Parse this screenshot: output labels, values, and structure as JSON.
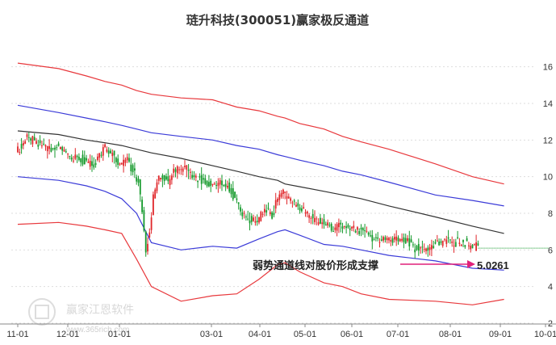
{
  "chart_data": {
    "type": "candlestick_with_channels",
    "title": "琏升科技(300051)赢家极反通道",
    "y_ticks": [
      "16",
      "14",
      "12",
      "10",
      "8",
      "6",
      "4",
      "2"
    ],
    "x_ticks": [
      "11-01",
      "12-01",
      "01-01",
      "03-01",
      "04-01",
      "05-01",
      "06-01",
      "07-01",
      "08-01",
      "09-01",
      "10-01"
    ],
    "ylim": [
      2,
      17
    ],
    "grid": "horizontal dashed",
    "annotation": {
      "text": "弱势通道线对股价形成支撑",
      "value": "5.0261"
    },
    "watermark": {
      "brand": "赢家江恩软件",
      "url": "www.365rich.com"
    },
    "colors": {
      "up": "#e0262a",
      "down": "#159a2c",
      "channel_outer": "#e8383c",
      "channel_inner": "#3b3bd8",
      "mid": "#333333",
      "arrow": "#e0217a"
    },
    "channel_x": [
      0,
      22,
      37,
      47,
      56,
      64,
      72,
      88,
      105,
      118,
      130,
      140,
      144,
      152,
      165,
      175,
      185,
      200,
      225,
      245,
      262
    ],
    "upper_outer": [
      16.2,
      15.9,
      15.5,
      15.2,
      15.0,
      14.7,
      14.5,
      14.3,
      14.2,
      13.8,
      13.6,
      13.3,
      13.2,
      12.9,
      12.6,
      12.2,
      11.9,
      11.5,
      10.7,
      10.0,
      9.6
    ],
    "upper_inner": [
      13.9,
      13.5,
      13.2,
      13.0,
      12.8,
      12.6,
      12.4,
      12.2,
      12.0,
      11.7,
      11.5,
      11.2,
      11.1,
      10.9,
      10.6,
      10.3,
      10.1,
      9.7,
      9.0,
      8.7,
      8.4
    ],
    "middle": [
      12.5,
      12.3,
      12.0,
      11.85,
      11.7,
      11.5,
      11.3,
      11.0,
      10.6,
      10.3,
      10.0,
      9.8,
      9.6,
      9.45,
      9.2,
      9.0,
      8.8,
      8.4,
      7.8,
      7.3,
      6.9
    ],
    "lower_inner": [
      10.0,
      9.8,
      9.5,
      9.2,
      8.8,
      8.0,
      6.4,
      6.0,
      6.2,
      6.1,
      6.6,
      7.0,
      7.1,
      6.8,
      6.3,
      6.2,
      6.0,
      5.7,
      5.4,
      5.0,
      4.9
    ],
    "lower_outer": [
      7.4,
      7.5,
      7.3,
      7.1,
      6.9,
      5.5,
      4.0,
      3.2,
      3.5,
      3.6,
      4.4,
      5.2,
      5.3,
      4.8,
      4.2,
      4.0,
      3.6,
      3.3,
      3.2,
      3.0,
      3.3
    ],
    "price_x": [
      0,
      6,
      12,
      18,
      24,
      30,
      36,
      42,
      48,
      52,
      56,
      60,
      63,
      66,
      68,
      70,
      72,
      74,
      76,
      78,
      82,
      86,
      90,
      95,
      100,
      105,
      110,
      115,
      120,
      125,
      130,
      135,
      138,
      141,
      144,
      147,
      150,
      155,
      160,
      165,
      170,
      175,
      180,
      185,
      190,
      195,
      200,
      205,
      210,
      215,
      218,
      222,
      226,
      229,
      232,
      236,
      240,
      245,
      248
    ],
    "price": [
      11.3,
      12.2,
      11.8,
      11.5,
      11.6,
      11.1,
      10.9,
      10.7,
      11.6,
      11.2,
      10.6,
      11.0,
      10.3,
      9.6,
      8.2,
      6.1,
      7.0,
      8.9,
      9.6,
      10.1,
      9.7,
      10.4,
      10.5,
      10.1,
      9.8,
      9.6,
      9.6,
      9.4,
      8.4,
      7.6,
      7.7,
      8.2,
      7.8,
      8.9,
      9.1,
      8.8,
      8.5,
      8.1,
      7.7,
      7.5,
      7.2,
      7.3,
      7.2,
      7.0,
      6.8,
      6.5,
      6.7,
      6.6,
      6.5,
      6.1,
      6.0,
      6.0,
      6.3,
      6.4,
      6.6,
      6.4,
      6.5,
      6.2,
      6.2
    ],
    "flat_line_value": 6.1
  }
}
